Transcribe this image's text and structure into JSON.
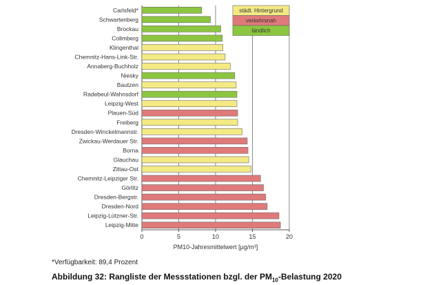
{
  "chart_data": {
    "type": "bar",
    "orientation": "horizontal",
    "xlabel": "PM10-Jahresmittelwert [µg/m³]",
    "xlim": [
      0,
      20
    ],
    "xticks": [
      0,
      5,
      10,
      15,
      20
    ],
    "grid": true,
    "legend_position": "top-right",
    "legend": [
      {
        "name": "städt. Hintergrund",
        "color": "#f4ea84"
      },
      {
        "name": "verkehrsnah",
        "color": "#e07a7a"
      },
      {
        "name": "ländlich",
        "color": "#8cc640"
      }
    ],
    "categories": [
      "Carlsfeld*",
      "Schwartenberg",
      "Brockau",
      "Collmberg",
      "Klingenthal",
      "Chemnitz-Hans-Link-Str.",
      "Annaberg-Buchholz",
      "Niesky",
      "Bautzen",
      "Radebeul-Wahnsdorf",
      "Leipzig-West",
      "Plauen-Süd",
      "Freiberg",
      "Dresden-Winckelmannstr.",
      "Zwickau-Werdauer Str.",
      "Borna",
      "Glauchau",
      "Zittau-Ost",
      "Chemnitz-Leipziger Str.",
      "Görlitz",
      "Dresden-Bergstr.",
      "Dresden-Nord",
      "Leipzig-Lützner-Str.",
      "Leipzig-Mitte"
    ],
    "values": [
      8.1,
      9.3,
      10.7,
      10.9,
      11.0,
      11.3,
      12.0,
      12.6,
      12.8,
      12.9,
      12.9,
      13.0,
      13.0,
      13.6,
      14.3,
      14.4,
      14.5,
      14.8,
      16.1,
      16.5,
      16.8,
      17.0,
      18.6,
      18.8
    ],
    "types": [
      2,
      2,
      2,
      2,
      0,
      0,
      0,
      2,
      0,
      2,
      0,
      1,
      0,
      0,
      1,
      1,
      0,
      0,
      1,
      1,
      1,
      1,
      1,
      1
    ]
  },
  "footnote": "*Verfügbarkeit: 89,4 Prozent",
  "caption": {
    "pre": "Abbildung 32: Rangliste der Messstationen bzgl. der PM",
    "sub": "10",
    "post": "-Belastung 2020"
  }
}
